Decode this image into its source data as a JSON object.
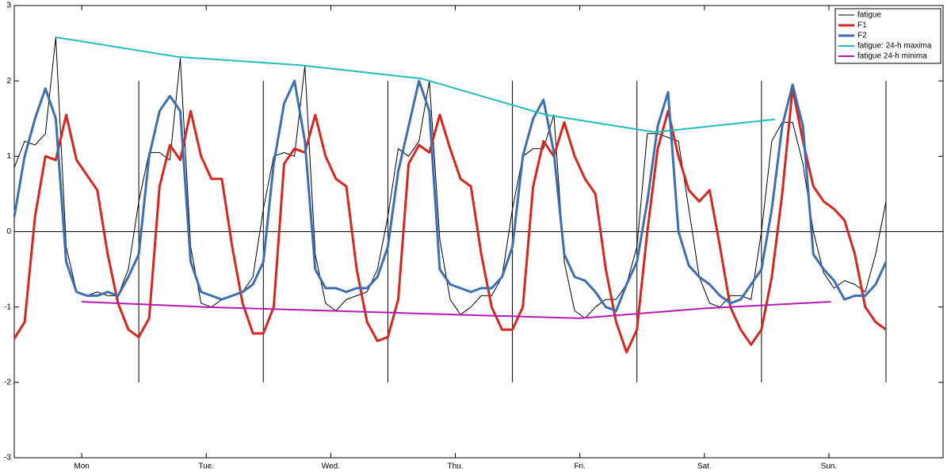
{
  "chart_data": {
    "type": "line",
    "x": [
      0,
      2,
      4,
      6,
      8,
      10,
      12,
      14,
      16,
      18,
      20,
      22,
      24,
      26,
      28,
      30,
      32,
      34,
      36,
      38,
      40,
      42,
      44,
      46,
      48,
      50,
      52,
      54,
      56,
      58,
      60,
      62,
      64,
      66,
      68,
      70,
      72,
      74,
      76,
      78,
      80,
      82,
      84,
      86,
      88,
      90,
      92,
      94,
      96,
      98,
      100,
      102,
      104,
      106,
      108,
      110,
      112,
      114,
      116,
      118,
      120,
      122,
      124,
      126,
      128,
      130,
      132,
      134,
      136,
      138,
      140,
      142,
      144,
      146,
      148,
      150,
      152,
      154,
      156,
      158,
      160,
      162,
      164,
      166,
      168
    ],
    "series": [
      {
        "name": "fatigue",
        "color": "#000000",
        "line_width": 1,
        "values": [
          0.85,
          1.2,
          1.15,
          1.3,
          2.58,
          -0.2,
          -0.8,
          -0.85,
          -0.8,
          -0.85,
          -0.85,
          -0.5,
          0.4,
          1.05,
          1.05,
          0.95,
          2.3,
          -0.2,
          -0.95,
          -1.0,
          -0.9,
          -0.85,
          -0.8,
          -0.6,
          0.3,
          1.0,
          1.05,
          1.0,
          2.2,
          -0.3,
          -0.95,
          -1.05,
          -0.9,
          -0.85,
          -0.8,
          -0.5,
          0.2,
          1.1,
          1.0,
          1.2,
          2.0,
          -0.1,
          -0.9,
          -1.1,
          -1.0,
          -0.85,
          -0.85,
          -0.6,
          0.3,
          1.0,
          1.1,
          1.1,
          1.55,
          -0.4,
          -1.05,
          -1.15,
          -1.0,
          -0.9,
          -0.9,
          -0.7,
          -0.2,
          1.3,
          1.3,
          1.25,
          1.2,
          0.3,
          -0.6,
          -0.95,
          -1.0,
          -0.85,
          -0.85,
          -0.9,
          0.0,
          1.2,
          1.45,
          1.45,
          0.9,
          0.0,
          -0.55,
          -0.75,
          -0.65,
          -0.7,
          -0.8,
          -0.3,
          0.4
        ]
      },
      {
        "name": "F1",
        "color": "#d7261e",
        "line_width": 3,
        "values": [
          -1.42,
          -1.2,
          0.2,
          1.0,
          0.95,
          1.55,
          0.95,
          0.75,
          0.55,
          -0.3,
          -0.95,
          -1.3,
          -1.4,
          -1.15,
          0.6,
          1.15,
          0.95,
          1.6,
          1.0,
          0.7,
          0.7,
          -0.2,
          -0.95,
          -1.35,
          -1.35,
          -1.0,
          0.9,
          1.1,
          1.05,
          1.55,
          1.0,
          0.7,
          0.6,
          -0.5,
          -1.2,
          -1.45,
          -1.4,
          -0.9,
          0.9,
          1.15,
          1.05,
          1.55,
          1.1,
          0.7,
          0.6,
          -0.3,
          -1.0,
          -1.3,
          -1.3,
          -1.0,
          0.6,
          1.2,
          1.0,
          1.45,
          1.0,
          0.7,
          0.5,
          -0.5,
          -1.2,
          -1.6,
          -1.3,
          0.0,
          1.1,
          1.6,
          1.0,
          0.55,
          0.4,
          0.55,
          -0.2,
          -1.0,
          -1.3,
          -1.5,
          -1.3,
          -0.6,
          0.5,
          1.9,
          1.2,
          0.6,
          0.4,
          0.3,
          0.15,
          -0.3,
          -1.0,
          -1.2,
          -1.3
        ]
      },
      {
        "name": "F2",
        "color": "#3d6eb4",
        "line_width": 3,
        "values": [
          0.2,
          1.0,
          1.5,
          1.9,
          1.5,
          -0.4,
          -0.8,
          -0.85,
          -0.85,
          -0.8,
          -0.85,
          -0.6,
          -0.3,
          1.0,
          1.6,
          1.8,
          1.6,
          -0.4,
          -0.8,
          -0.85,
          -0.9,
          -0.85,
          -0.8,
          -0.7,
          -0.4,
          0.9,
          1.7,
          2.0,
          1.2,
          -0.5,
          -0.75,
          -0.75,
          -0.8,
          -0.75,
          -0.75,
          -0.6,
          -0.2,
          0.8,
          1.4,
          2.0,
          1.6,
          -0.5,
          -0.7,
          -0.75,
          -0.8,
          -0.75,
          -0.75,
          -0.6,
          -0.2,
          1.0,
          1.5,
          1.75,
          1.05,
          -0.3,
          -0.6,
          -0.65,
          -0.8,
          -1.0,
          -1.05,
          -0.7,
          -0.4,
          0.4,
          1.4,
          1.85,
          0.0,
          -0.45,
          -0.6,
          -0.7,
          -0.85,
          -0.95,
          -0.9,
          -0.7,
          -0.5,
          0.3,
          1.4,
          1.95,
          1.4,
          -0.3,
          -0.5,
          -0.65,
          -0.9,
          -0.85,
          -0.85,
          -0.7,
          -0.4
        ]
      },
      {
        "name": "fatigue: 24-h maxima",
        "color": "#1fbdbf",
        "line_width": 2,
        "x": [
          8,
          31.4,
          55,
          78.5,
          102.5,
          123.4,
          146.6
        ],
        "values": [
          2.58,
          2.32,
          2.21,
          2.03,
          1.55,
          1.32,
          1.49
        ]
      },
      {
        "name": "fatigue 24-h minima",
        "color": "#b51ab5",
        "line_width": 2,
        "x": [
          13,
          36.7,
          60.7,
          84.7,
          109,
          132.5,
          157.4
        ],
        "values": [
          -0.93,
          -1.0,
          -1.05,
          -1.1,
          -1.15,
          -1.02,
          -0.93
        ]
      }
    ],
    "xlim": [
      0,
      179
    ],
    "xticks": [
      {
        "value": 13,
        "label": "Mon"
      },
      {
        "value": 37,
        "label": "Tue."
      },
      {
        "value": 61,
        "label": "Wed."
      },
      {
        "value": 85,
        "label": "Thu."
      },
      {
        "value": 109,
        "label": "Fri."
      },
      {
        "value": 133,
        "label": "Sat."
      },
      {
        "value": 157,
        "label": "Sun."
      }
    ],
    "ylim": [
      -3,
      3
    ],
    "yticks": [
      -3,
      -2,
      -1,
      0,
      1,
      2,
      3
    ],
    "reference_line_y": 0,
    "day_boundaries": [
      24,
      48,
      72,
      96,
      120,
      144,
      168
    ],
    "boundary_span": [
      -2,
      2
    ],
    "legend": "upper right"
  }
}
